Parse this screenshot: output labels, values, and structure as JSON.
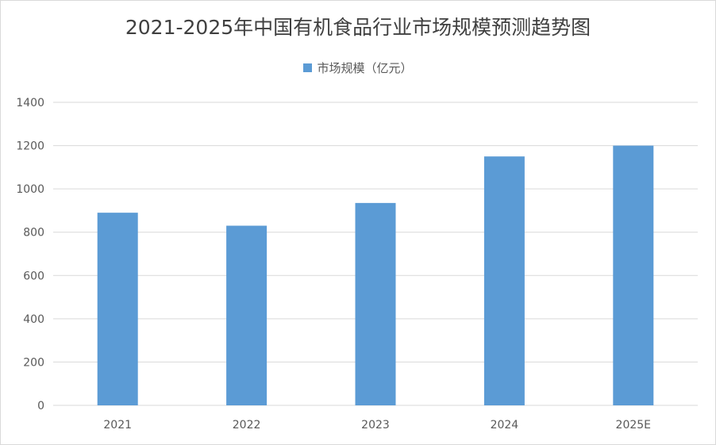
{
  "chart_data": {
    "type": "bar",
    "title": "2021-2025年中国有机食品行业市场规模预测趋势图",
    "categories": [
      "2021",
      "2022",
      "2023",
      "2024",
      "2025E"
    ],
    "series": [
      {
        "name": "市场规模（亿元）",
        "values": [
          890,
          830,
          935,
          1150,
          1200
        ]
      }
    ],
    "ylim": [
      0,
      1400
    ],
    "yticks": [
      0,
      200,
      400,
      600,
      800,
      1000,
      1200,
      1400
    ],
    "grid": true,
    "legend_position": "top",
    "bar_color": "#5b9bd5",
    "grid_color": "#d9d9d9"
  }
}
